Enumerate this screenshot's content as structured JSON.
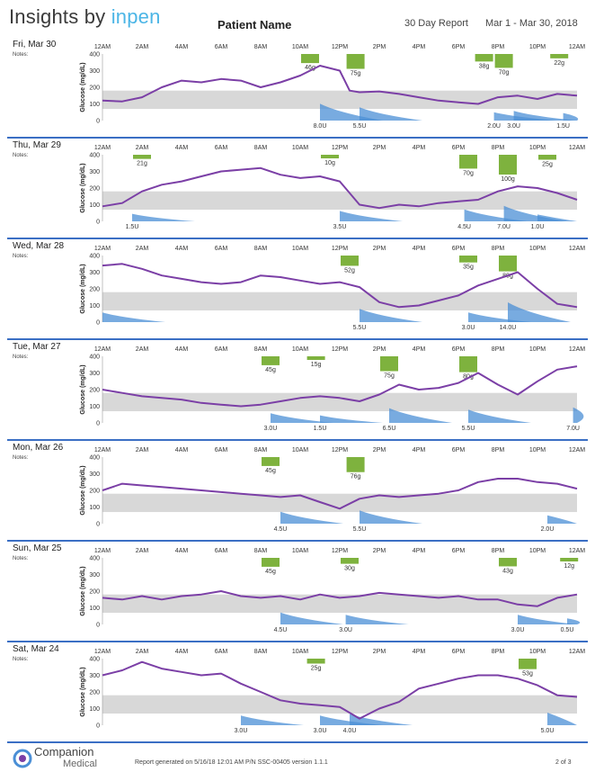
{
  "header": {
    "logo_text": "Insights by ",
    "logo_brand": "inpen",
    "patient_name": "Patient Name",
    "report_type": "30 Day Report",
    "date_range": "Mar 1 - Mar 30, 2018"
  },
  "notes_label": "Notes:",
  "y_axis_label": "Glucose (mg/dL)",
  "y_ticks": [
    "400",
    "300",
    "200",
    "100",
    "0"
  ],
  "time_labels": [
    "12AM",
    "2AM",
    "4AM",
    "6AM",
    "8AM",
    "10AM",
    "12PM",
    "2PM",
    "4PM",
    "6PM",
    "8PM",
    "10PM",
    "12AM"
  ],
  "colors": {
    "glucose_line": "#7b3fa6",
    "target_band": "#d8d8d8",
    "carbs": "#7eb23e",
    "insulin": "#4b8fd6",
    "divider": "#3b6fc4"
  },
  "chart_data": [
    {
      "type": "line",
      "date": "Fri, Mar 30",
      "ylim": [
        0,
        400
      ],
      "target_range": [
        70,
        180
      ],
      "glucose": [
        [
          0,
          120
        ],
        [
          1,
          115
        ],
        [
          2,
          140
        ],
        [
          3,
          200
        ],
        [
          4,
          240
        ],
        [
          5,
          230
        ],
        [
          6,
          250
        ],
        [
          7,
          240
        ],
        [
          8,
          200
        ],
        [
          9,
          230
        ],
        [
          10,
          270
        ],
        [
          11,
          330
        ],
        [
          12,
          300
        ],
        [
          12.5,
          180
        ],
        [
          13,
          170
        ],
        [
          14,
          175
        ],
        [
          15,
          160
        ],
        [
          16,
          140
        ],
        [
          17,
          120
        ],
        [
          18,
          110
        ],
        [
          19,
          100
        ],
        [
          20,
          140
        ],
        [
          21,
          150
        ],
        [
          22,
          130
        ],
        [
          23,
          160
        ],
        [
          24,
          150
        ]
      ],
      "carbs": [
        {
          "t": 10.5,
          "g": 46,
          "label": "46g"
        },
        {
          "t": 12.8,
          "g": 75,
          "label": "75g"
        },
        {
          "t": 19.3,
          "g": 38,
          "label": "38g"
        },
        {
          "t": 20.3,
          "g": 70,
          "label": "70g"
        },
        {
          "t": 23.1,
          "g": 22,
          "label": "22g"
        }
      ],
      "insulin": [
        {
          "t": 11.0,
          "u": 8.0,
          "label": "8.0U"
        },
        {
          "t": 13.0,
          "u": 5.5,
          "label": "5.5U"
        },
        {
          "t": 19.8,
          "u": 2.0,
          "label": "2.0U"
        },
        {
          "t": 20.8,
          "u": 3.0,
          "label": "3.0U"
        },
        {
          "t": 23.3,
          "u": 1.5,
          "label": "1.5U"
        }
      ]
    },
    {
      "type": "line",
      "date": "Thu, Mar 29",
      "ylim": [
        0,
        400
      ],
      "target_range": [
        70,
        180
      ],
      "glucose": [
        [
          0,
          90
        ],
        [
          1,
          110
        ],
        [
          2,
          180
        ],
        [
          3,
          220
        ],
        [
          4,
          240
        ],
        [
          5,
          270
        ],
        [
          6,
          300
        ],
        [
          7,
          310
        ],
        [
          8,
          320
        ],
        [
          9,
          280
        ],
        [
          10,
          260
        ],
        [
          11,
          270
        ],
        [
          12,
          240
        ],
        [
          13,
          100
        ],
        [
          14,
          80
        ],
        [
          15,
          100
        ],
        [
          16,
          90
        ],
        [
          17,
          110
        ],
        [
          18,
          120
        ],
        [
          19,
          130
        ],
        [
          20,
          180
        ],
        [
          21,
          210
        ],
        [
          22,
          200
        ],
        [
          23,
          170
        ],
        [
          24,
          130
        ]
      ],
      "carbs": [
        {
          "t": 2.0,
          "g": 21,
          "label": "21g"
        },
        {
          "t": 11.5,
          "g": 10,
          "label": "10g"
        },
        {
          "t": 18.5,
          "g": 70,
          "label": "70g"
        },
        {
          "t": 20.5,
          "g": 100,
          "label": "100g"
        },
        {
          "t": 22.5,
          "g": 25,
          "label": "25g"
        }
      ],
      "insulin": [
        {
          "t": 1.5,
          "u": 1.5,
          "label": "1.5U"
        },
        {
          "t": 12.0,
          "u": 3.5,
          "label": "3.5U"
        },
        {
          "t": 18.3,
          "u": 4.5,
          "label": "4.5U"
        },
        {
          "t": 20.3,
          "u": 7.0,
          "label": "7.0U"
        },
        {
          "t": 22.0,
          "u": 1.0,
          "label": "1.0U"
        }
      ]
    },
    {
      "type": "line",
      "date": "Wed, Mar 28",
      "ylim": [
        0,
        400
      ],
      "target_range": [
        70,
        180
      ],
      "glucose": [
        [
          0,
          340
        ],
        [
          1,
          350
        ],
        [
          2,
          320
        ],
        [
          3,
          280
        ],
        [
          4,
          260
        ],
        [
          5,
          240
        ],
        [
          6,
          230
        ],
        [
          7,
          240
        ],
        [
          8,
          280
        ],
        [
          9,
          270
        ],
        [
          10,
          250
        ],
        [
          11,
          230
        ],
        [
          12,
          240
        ],
        [
          13,
          210
        ],
        [
          14,
          120
        ],
        [
          15,
          90
        ],
        [
          16,
          100
        ],
        [
          17,
          130
        ],
        [
          18,
          160
        ],
        [
          19,
          220
        ],
        [
          20,
          260
        ],
        [
          21,
          300
        ],
        [
          22,
          200
        ],
        [
          23,
          110
        ],
        [
          24,
          90
        ]
      ],
      "carbs": [
        {
          "t": 12.5,
          "g": 52,
          "label": "52g"
        },
        {
          "t": 18.5,
          "g": 35,
          "label": "35g"
        },
        {
          "t": 20.5,
          "g": 80,
          "label": "80g"
        }
      ],
      "insulin": [
        {
          "t": 0.0,
          "u": 3.0,
          "label": ""
        },
        {
          "t": 13.0,
          "u": 5.5,
          "label": "5.5U"
        },
        {
          "t": 18.5,
          "u": 3.0,
          "label": "3.0U"
        },
        {
          "t": 20.5,
          "u": 14.0,
          "label": "14.0U"
        }
      ]
    },
    {
      "type": "line",
      "date": "Tue, Mar 27",
      "ylim": [
        0,
        400
      ],
      "target_range": [
        70,
        180
      ],
      "glucose": [
        [
          0,
          200
        ],
        [
          1,
          180
        ],
        [
          2,
          160
        ],
        [
          3,
          150
        ],
        [
          4,
          140
        ],
        [
          5,
          120
        ],
        [
          6,
          110
        ],
        [
          7,
          100
        ],
        [
          8,
          110
        ],
        [
          9,
          130
        ],
        [
          10,
          150
        ],
        [
          11,
          160
        ],
        [
          12,
          150
        ],
        [
          13,
          130
        ],
        [
          14,
          170
        ],
        [
          15,
          230
        ],
        [
          16,
          200
        ],
        [
          17,
          210
        ],
        [
          18,
          240
        ],
        [
          19,
          300
        ],
        [
          20,
          230
        ],
        [
          21,
          170
        ],
        [
          22,
          250
        ],
        [
          23,
          320
        ],
        [
          24,
          340
        ]
      ],
      "carbs": [
        {
          "t": 8.5,
          "g": 45,
          "label": "45g"
        },
        {
          "t": 10.8,
          "g": 15,
          "label": "15g"
        },
        {
          "t": 14.5,
          "g": 75,
          "label": "75g"
        },
        {
          "t": 18.5,
          "g": 80,
          "label": "80g"
        }
      ],
      "insulin": [
        {
          "t": 8.5,
          "u": 3.0,
          "label": "3.0U"
        },
        {
          "t": 11.0,
          "u": 1.5,
          "label": "1.5U"
        },
        {
          "t": 14.5,
          "u": 6.5,
          "label": "6.5U"
        },
        {
          "t": 18.5,
          "u": 5.5,
          "label": "5.5U"
        },
        {
          "t": 23.8,
          "u": 7.0,
          "label": "7.0U"
        }
      ]
    },
    {
      "type": "line",
      "date": "Mon, Mar 26",
      "ylim": [
        0,
        400
      ],
      "target_range": [
        70,
        180
      ],
      "glucose": [
        [
          0,
          200
        ],
        [
          1,
          240
        ],
        [
          2,
          230
        ],
        [
          3,
          220
        ],
        [
          4,
          210
        ],
        [
          5,
          200
        ],
        [
          6,
          190
        ],
        [
          7,
          180
        ],
        [
          8,
          170
        ],
        [
          9,
          160
        ],
        [
          10,
          170
        ],
        [
          11,
          130
        ],
        [
          12,
          90
        ],
        [
          13,
          150
        ],
        [
          14,
          170
        ],
        [
          15,
          160
        ],
        [
          16,
          170
        ],
        [
          17,
          180
        ],
        [
          18,
          200
        ],
        [
          19,
          250
        ],
        [
          20,
          270
        ],
        [
          21,
          270
        ],
        [
          22,
          250
        ],
        [
          23,
          240
        ],
        [
          24,
          210
        ]
      ],
      "carbs": [
        {
          "t": 8.5,
          "g": 45,
          "label": "45g"
        },
        {
          "t": 12.8,
          "g": 76,
          "label": "76g"
        }
      ],
      "insulin": [
        {
          "t": 9.0,
          "u": 4.5,
          "label": "4.5U"
        },
        {
          "t": 13.0,
          "u": 5.5,
          "label": "5.5U"
        },
        {
          "t": 22.5,
          "u": 2.0,
          "label": "2.0U"
        }
      ]
    },
    {
      "type": "line",
      "date": "Sun, Mar 25",
      "ylim": [
        0,
        400
      ],
      "target_range": [
        70,
        180
      ],
      "glucose": [
        [
          0,
          160
        ],
        [
          1,
          150
        ],
        [
          2,
          170
        ],
        [
          3,
          150
        ],
        [
          4,
          170
        ],
        [
          5,
          180
        ],
        [
          6,
          200
        ],
        [
          7,
          170
        ],
        [
          8,
          160
        ],
        [
          9,
          170
        ],
        [
          10,
          150
        ],
        [
          11,
          180
        ],
        [
          12,
          160
        ],
        [
          13,
          170
        ],
        [
          14,
          190
        ],
        [
          15,
          180
        ],
        [
          16,
          170
        ],
        [
          17,
          160
        ],
        [
          18,
          170
        ],
        [
          19,
          150
        ],
        [
          20,
          150
        ],
        [
          21,
          120
        ],
        [
          22,
          110
        ],
        [
          23,
          160
        ],
        [
          24,
          180
        ]
      ],
      "carbs": [
        {
          "t": 8.5,
          "g": 45,
          "label": "45g"
        },
        {
          "t": 12.5,
          "g": 30,
          "label": "30g"
        },
        {
          "t": 20.5,
          "g": 43,
          "label": "43g"
        },
        {
          "t": 23.6,
          "g": 12,
          "label": "12g"
        }
      ],
      "insulin": [
        {
          "t": 9.0,
          "u": 4.5,
          "label": "4.5U"
        },
        {
          "t": 12.3,
          "u": 3.0,
          "label": "3.0U"
        },
        {
          "t": 21.0,
          "u": 3.0,
          "label": "3.0U"
        },
        {
          "t": 23.5,
          "u": 0.5,
          "label": "0.5U"
        }
      ]
    },
    {
      "type": "line",
      "date": "Sat, Mar 24",
      "ylim": [
        0,
        400
      ],
      "target_range": [
        70,
        180
      ],
      "glucose": [
        [
          0,
          300
        ],
        [
          1,
          330
        ],
        [
          2,
          380
        ],
        [
          3,
          340
        ],
        [
          4,
          320
        ],
        [
          5,
          300
        ],
        [
          6,
          310
        ],
        [
          7,
          250
        ],
        [
          8,
          200
        ],
        [
          9,
          150
        ],
        [
          10,
          130
        ],
        [
          11,
          120
        ],
        [
          12,
          110
        ],
        [
          13,
          40
        ],
        [
          14,
          100
        ],
        [
          15,
          140
        ],
        [
          16,
          220
        ],
        [
          17,
          250
        ],
        [
          18,
          280
        ],
        [
          19,
          300
        ],
        [
          20,
          300
        ],
        [
          21,
          280
        ],
        [
          22,
          240
        ],
        [
          23,
          180
        ],
        [
          24,
          170
        ]
      ],
      "carbs": [
        {
          "t": 10.8,
          "g": 25,
          "label": "25g"
        },
        {
          "t": 21.5,
          "g": 53,
          "label": "53g"
        }
      ],
      "insulin": [
        {
          "t": 7.0,
          "u": 3.0,
          "label": "3.0U"
        },
        {
          "t": 11.0,
          "u": 3.0,
          "label": "3.0U"
        },
        {
          "t": 12.5,
          "u": 4.0,
          "label": "4.0U"
        },
        {
          "t": 22.5,
          "u": 5.0,
          "label": "5.0U"
        }
      ]
    }
  ],
  "footer": {
    "company_1": "Companion",
    "company_2": "Medical",
    "generated": "Report generated on 5/16/18 12:01 AM P/N SSC-00405 version 1.1.1",
    "page": "2 of 3"
  }
}
